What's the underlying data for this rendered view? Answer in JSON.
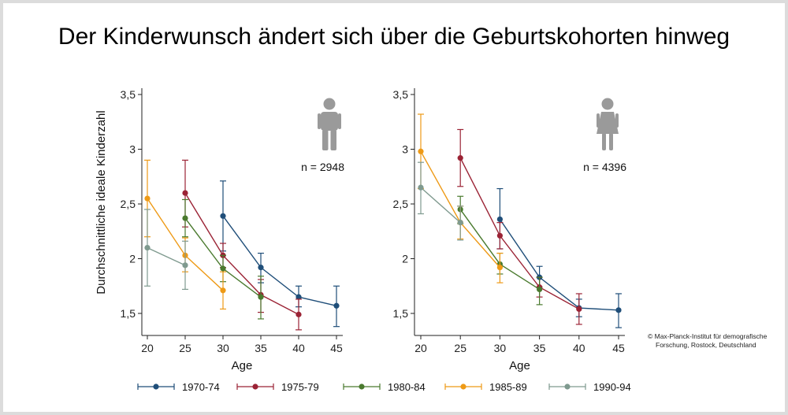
{
  "title": "Der Kinderwunsch ändert sich über die Geburtskohorten hinweg",
  "credit": {
    "line1": "© Max-Planck-Institut für demografische",
    "line2": "Forschung, Rostock, Deutschland"
  },
  "colors": {
    "1970-74": "#1f4e79",
    "1975-79": "#9b2335",
    "1980-84": "#4a7a2e",
    "1985-89": "#ee9a16",
    "1990-94": "#7f9a8f"
  },
  "chart_data": [
    {
      "type": "line",
      "panel": "men",
      "icon": "male-person-icon",
      "n_label": "n = 2948",
      "xlabel": "Age",
      "ylabel": "Durchschnittliche ideale Kinderzahl",
      "xlim": [
        20,
        45
      ],
      "ylim": [
        1.3,
        3.55
      ],
      "xticks": [
        20,
        25,
        30,
        35,
        40,
        45
      ],
      "xtick_labels": [
        "20",
        "25",
        "30",
        "35",
        "40",
        "45"
      ],
      "yticks": [
        1.5,
        2,
        2.5,
        3,
        3.5
      ],
      "ytick_labels": [
        "1,5",
        "2",
        "2,5",
        "3",
        "3,5"
      ],
      "series": [
        {
          "name": "1970-74",
          "x": [
            30,
            35,
            40,
            45
          ],
          "y": [
            2.39,
            1.92,
            1.65,
            1.57
          ],
          "lo": [
            2.07,
            1.78,
            1.56,
            1.38
          ],
          "hi": [
            2.71,
            2.05,
            1.75,
            1.75
          ]
        },
        {
          "name": "1975-79",
          "x": [
            25,
            30,
            35,
            40
          ],
          "y": [
            2.6,
            2.03,
            1.67,
            1.49
          ],
          "lo": [
            2.29,
            1.92,
            1.51,
            1.35
          ],
          "hi": [
            2.9,
            2.14,
            1.81,
            1.63
          ]
        },
        {
          "name": "1980-84",
          "x": [
            25,
            30,
            35
          ],
          "y": [
            2.37,
            1.91,
            1.65
          ],
          "lo": [
            2.2,
            1.79,
            1.45
          ],
          "hi": [
            2.54,
            2.03,
            1.84
          ]
        },
        {
          "name": "1985-89",
          "x": [
            20,
            25,
            30
          ],
          "y": [
            2.55,
            2.03,
            1.71
          ],
          "lo": [
            2.2,
            1.88,
            1.54
          ],
          "hi": [
            2.9,
            2.19,
            1.88
          ]
        },
        {
          "name": "1990-94",
          "x": [
            20,
            25
          ],
          "y": [
            2.1,
            1.94
          ],
          "lo": [
            1.75,
            1.72
          ],
          "hi": [
            2.45,
            2.16
          ]
        }
      ]
    },
    {
      "type": "line",
      "panel": "women",
      "icon": "female-person-icon",
      "n_label": "n = 4396",
      "xlabel": "Age",
      "ylabel": "",
      "xlim": [
        20,
        45
      ],
      "ylim": [
        1.3,
        3.55
      ],
      "xticks": [
        20,
        25,
        30,
        35,
        40,
        45
      ],
      "xtick_labels": [
        "20",
        "25",
        "30",
        "35",
        "40",
        "45"
      ],
      "yticks": [
        1.5,
        2,
        2.5,
        3,
        3.5
      ],
      "ytick_labels": [
        "1,5",
        "2",
        "2,5",
        "3",
        "3,5"
      ],
      "series": [
        {
          "name": "1970-74",
          "x": [
            30,
            35,
            40,
            45
          ],
          "y": [
            2.36,
            1.83,
            1.55,
            1.53
          ],
          "lo": [
            2.09,
            1.74,
            1.47,
            1.37
          ],
          "hi": [
            2.64,
            1.93,
            1.63,
            1.68
          ]
        },
        {
          "name": "1975-79",
          "x": [
            25,
            30,
            35,
            40
          ],
          "y": [
            2.92,
            2.21,
            1.74,
            1.54
          ],
          "lo": [
            2.66,
            2.09,
            1.65,
            1.4
          ],
          "hi": [
            3.18,
            2.33,
            1.83,
            1.68
          ]
        },
        {
          "name": "1980-84",
          "x": [
            25,
            30,
            35
          ],
          "y": [
            2.45,
            1.95,
            1.72
          ],
          "lo": [
            2.32,
            1.86,
            1.58
          ],
          "hi": [
            2.57,
            2.05,
            1.83
          ]
        },
        {
          "name": "1985-89",
          "x": [
            20,
            25,
            30
          ],
          "y": [
            2.98,
            2.33,
            1.92
          ],
          "lo": [
            2.64,
            2.18,
            1.78
          ],
          "hi": [
            3.32,
            2.48,
            2.05
          ]
        },
        {
          "name": "1990-94",
          "x": [
            20,
            25
          ],
          "y": [
            2.65,
            2.33
          ],
          "lo": [
            2.41,
            2.17
          ],
          "hi": [
            2.88,
            2.48
          ]
        }
      ]
    }
  ],
  "legend": [
    "1970-74",
    "1975-79",
    "1980-84",
    "1985-89",
    "1990-94"
  ]
}
